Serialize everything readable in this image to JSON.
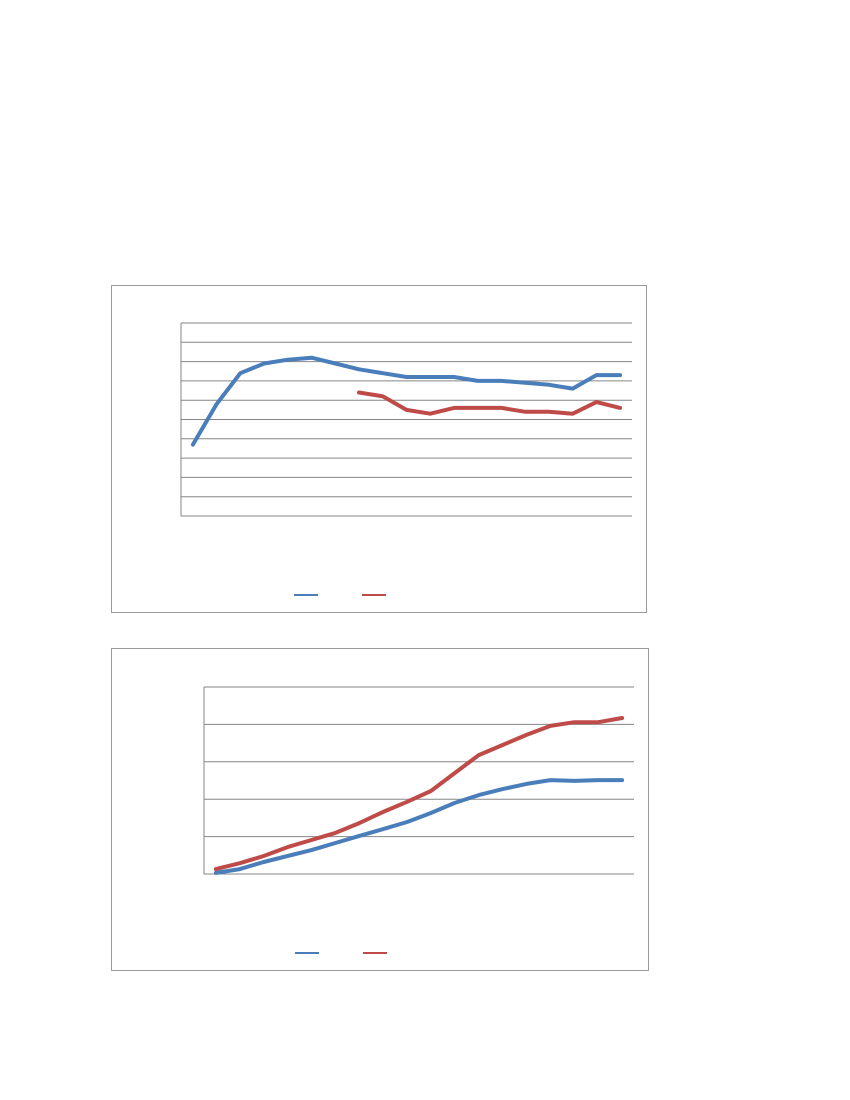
{
  "chart_data": [
    {
      "type": "line",
      "categories": [
        null,
        null,
        null,
        null,
        null,
        null,
        null,
        null,
        null,
        null,
        null,
        null,
        null,
        null,
        null,
        null,
        null,
        null,
        null
      ],
      "series": [
        {
          "color": "#4a7ebb",
          "values": [
            3.7,
            5.8,
            7.4,
            7.9,
            8.1,
            8.2,
            7.9,
            7.6,
            7.4,
            7.2,
            7.2,
            7.2,
            7.0,
            7.0,
            6.9,
            6.8,
            6.6,
            7.3,
            7.3
          ]
        },
        {
          "color": "#be4b48",
          "values": [
            null,
            null,
            null,
            null,
            null,
            null,
            null,
            6.4,
            6.2,
            5.5,
            5.3,
            5.6,
            5.6,
            5.6,
            5.4,
            5.4,
            5.3,
            5.9,
            5.6
          ]
        }
      ],
      "ylim": [
        0,
        10
      ],
      "yticks": [
        0,
        1,
        2,
        3,
        4,
        5,
        6,
        7,
        8,
        9,
        10
      ],
      "grid": true,
      "tick_labels": false,
      "legend": "bottom"
    },
    {
      "type": "line",
      "categories": [
        null,
        null,
        null,
        null,
        null,
        null,
        null,
        null,
        null,
        null,
        null,
        null,
        null,
        null,
        null,
        null,
        null,
        null
      ],
      "series": [
        {
          "color": "#4a7ebb",
          "values": [
            0.03,
            0.13,
            0.32,
            0.48,
            0.64,
            0.83,
            1.02,
            1.2,
            1.39,
            1.63,
            1.9,
            2.11,
            2.27,
            2.41,
            2.51,
            2.49,
            2.51,
            2.51
          ]
        },
        {
          "color": "#be4b48",
          "values": [
            0.13,
            0.29,
            0.48,
            0.72,
            0.91,
            1.1,
            1.36,
            1.66,
            1.93,
            2.22,
            2.7,
            3.18,
            3.45,
            3.72,
            3.96,
            4.06,
            4.06,
            4.17
          ]
        }
      ],
      "ylim": [
        0,
        5
      ],
      "yticks": [
        0,
        1,
        2,
        3,
        4,
        5
      ],
      "grid": true,
      "tick_labels": false,
      "legend": "bottom"
    }
  ]
}
